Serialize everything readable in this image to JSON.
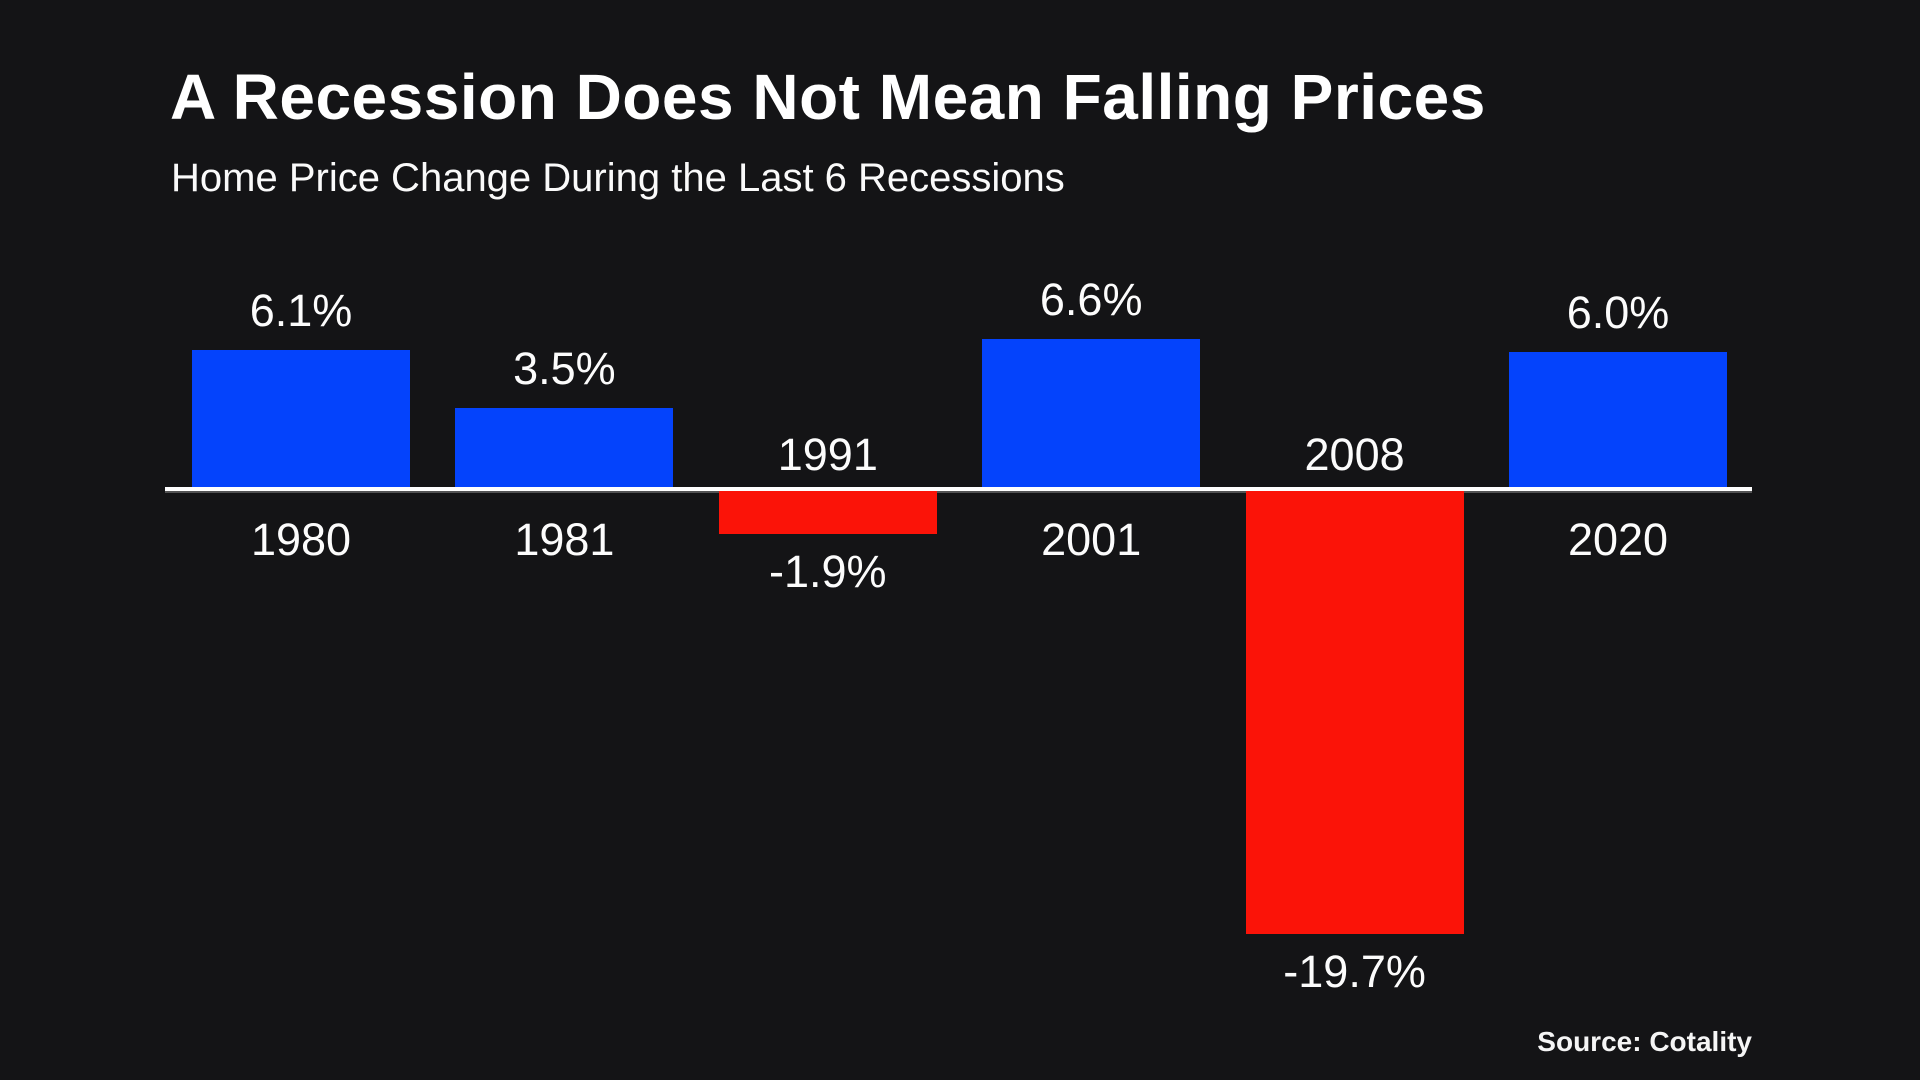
{
  "header": {
    "title": "A Recession Does Not Mean Falling Prices",
    "subtitle": "Home Price Change During the Last 6 Recessions"
  },
  "source_note": "Source: Cotality",
  "colors": {
    "background": "#141416",
    "positive_bar": "#0443FC",
    "negative_bar": "#FB1308",
    "axis_line": "#ffffff",
    "text": "#ffffff"
  },
  "chart_data": {
    "type": "bar",
    "title": "A Recession Does Not Mean Falling Prices",
    "subtitle": "Home Price Change During the Last 6 Recessions",
    "categories": [
      "1980",
      "1981",
      "1991",
      "2001",
      "2008",
      "2020"
    ],
    "values": [
      6.1,
      3.5,
      -1.9,
      6.6,
      -19.7,
      6.0
    ],
    "value_labels": [
      "6.1%",
      "3.5%",
      "-1.9%",
      "6.6%",
      "-19.7%",
      "6.0%"
    ],
    "series_name": "Home Price Change",
    "units": "percent",
    "ylim": [
      -19.7,
      6.6
    ],
    "grid": false,
    "legend": false,
    "baseline": 0,
    "positive_color": "#0443FC",
    "negative_color": "#FB1308",
    "label_placement": "positive bars: value above bar, year below axis; negative bars: year above axis, value below bar",
    "source": "Source: Cotality"
  }
}
